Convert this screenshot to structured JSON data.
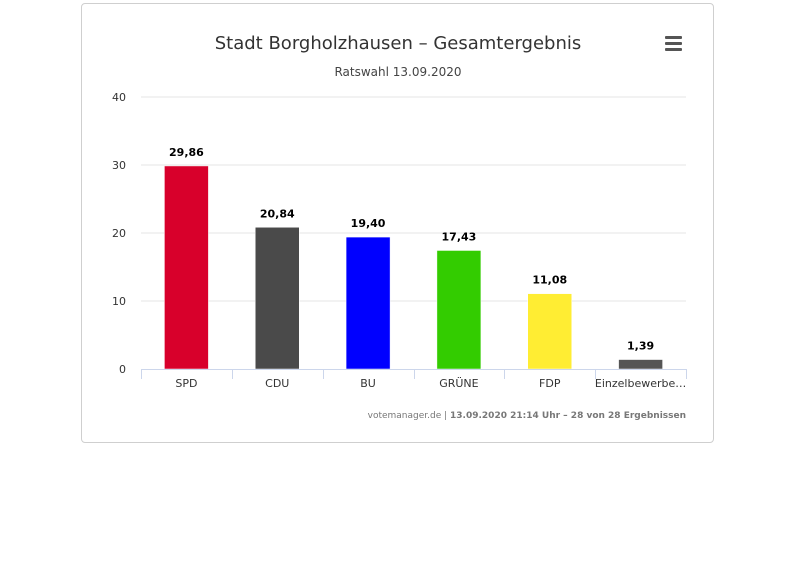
{
  "chart_data": {
    "type": "bar",
    "title": "Stadt Borgholzhausen – Gesamtergebnis",
    "subtitle": "Ratswahl 13.09.2020",
    "categories": [
      "SPD",
      "CDU",
      "BU",
      "GRÜNE",
      "FDP",
      "Einzelbewerbe…"
    ],
    "values": [
      29.86,
      20.84,
      19.4,
      17.43,
      11.08,
      1.39
    ],
    "value_labels": [
      "29,86",
      "20,84",
      "19,40",
      "17,43",
      "11,08",
      "1,39"
    ],
    "colors": [
      "#d8002b",
      "#4a4a4a",
      "#0000ff",
      "#33cc00",
      "#ffed33",
      "#555555"
    ],
    "ylim": [
      0,
      40
    ],
    "yticks": [
      "0",
      "10",
      "20",
      "30",
      "40"
    ],
    "xlabel": "",
    "ylabel": "",
    "grid": true,
    "credits": {
      "source": "votemanager.de",
      "separator": " | ",
      "info": "13.09.2020 21:14 Uhr – 28 von 28 Ergebnissen"
    }
  },
  "menu_icon": "hamburger-menu-icon"
}
